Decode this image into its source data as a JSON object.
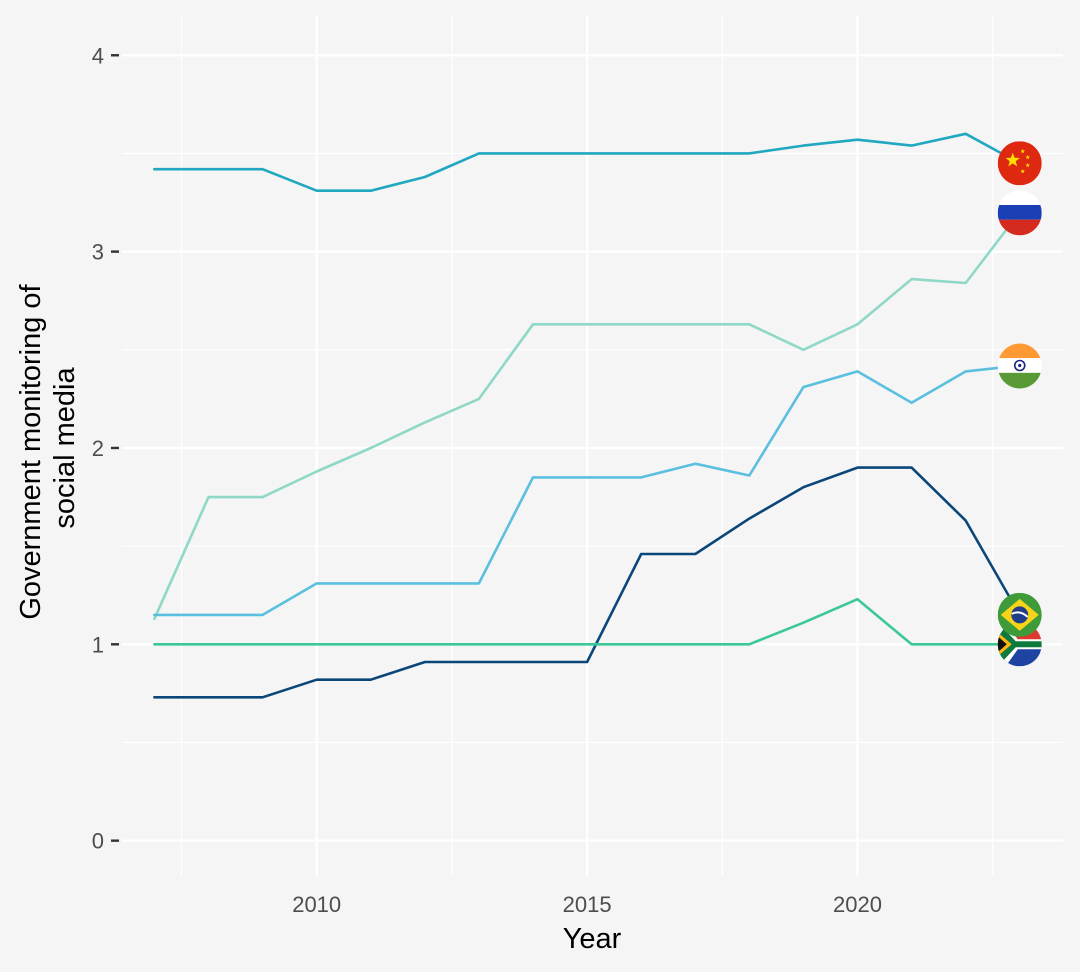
{
  "chart_data": {
    "type": "line",
    "title": "",
    "xlabel": "Year",
    "ylabel_lines": [
      "Government monitoring of",
      "social media"
    ],
    "xlim": [
      2006.4,
      2023.8
    ],
    "ylim": [
      -0.18,
      4.2
    ],
    "x_ticks": [
      2010,
      2015,
      2020
    ],
    "y_ticks": [
      0,
      1,
      2,
      3,
      4
    ],
    "x_minor": [
      2007.5,
      2012.5,
      2017.5,
      2022.5
    ],
    "y_minor": [
      0.5,
      1.5,
      2.5,
      3.5
    ],
    "grid": true,
    "legend": "none",
    "x": [
      2007,
      2008,
      2009,
      2010,
      2011,
      2012,
      2013,
      2014,
      2015,
      2016,
      2017,
      2018,
      2019,
      2020,
      2021,
      2022,
      2023
    ],
    "series": [
      {
        "country": "china",
        "color": "#1fa8c0",
        "icon": "china-flag-icon",
        "values": [
          3.42,
          3.42,
          3.42,
          3.31,
          3.31,
          3.38,
          3.5,
          3.5,
          3.5,
          3.5,
          3.5,
          3.5,
          3.54,
          3.57,
          3.54,
          3.6,
          3.45
        ]
      },
      {
        "country": "russia",
        "color": "#8fd8c8",
        "icon": "russia-flag-icon",
        "values": [
          1.13,
          1.75,
          1.75,
          1.88,
          2.0,
          2.13,
          2.25,
          2.63,
          2.63,
          2.63,
          2.63,
          2.63,
          2.5,
          2.63,
          2.86,
          2.84,
          3.2
        ]
      },
      {
        "country": "india",
        "color": "#5bbfe0",
        "icon": "india-flag-icon",
        "values": [
          1.15,
          1.15,
          1.15,
          1.31,
          1.31,
          1.31,
          1.31,
          1.85,
          1.85,
          1.85,
          1.92,
          1.86,
          2.31,
          2.39,
          2.23,
          2.39,
          2.42
        ]
      },
      {
        "country": "brazil",
        "color": "#0b4679",
        "icon": "brazil-flag-icon",
        "values": [
          0.73,
          0.73,
          0.73,
          0.82,
          0.82,
          0.91,
          0.91,
          0.91,
          0.91,
          1.46,
          1.46,
          1.64,
          1.8,
          1.9,
          1.9,
          1.63,
          1.15
        ]
      },
      {
        "country": "south-africa",
        "color": "#3cc896",
        "icon": "south-africa-flag-icon",
        "values": [
          1.0,
          1.0,
          1.0,
          1.0,
          1.0,
          1.0,
          1.0,
          1.0,
          1.0,
          1.0,
          1.0,
          1.0,
          1.11,
          1.23,
          1.0,
          1.0,
          1.0
        ]
      }
    ]
  }
}
